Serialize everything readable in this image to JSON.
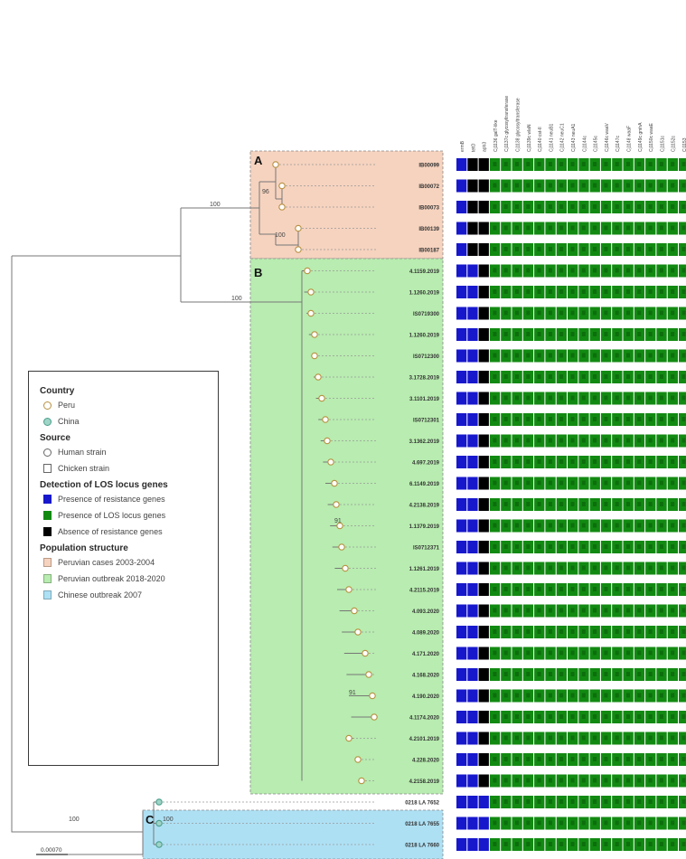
{
  "tree": {
    "groups": [
      {
        "letter": "A",
        "name": "Peruvian cases 2003-2004",
        "color": "#f6d3bf"
      },
      {
        "letter": "B",
        "name": "Peruvian outbreak 2018-2020",
        "color": "#b8ecb0"
      },
      {
        "letter": "C",
        "name": "Chinese outbreak 2007",
        "color": "#aee0f4"
      }
    ],
    "bootstrap_labels": [
      "100",
      "100",
      "100",
      "100",
      "100",
      "96",
      "91",
      "91"
    ],
    "scale_bar": "0.00070",
    "leaves": [
      "IB00099",
      "IB00072",
      "IB00073",
      "IB00139",
      "IB00187",
      "4.1159.2019",
      "1.1260.2019",
      "IS0719300",
      "1.1260.2019",
      "IS0712300",
      "3.1728.2019",
      "3.1101.2019",
      "IS0712301",
      "3.1362.2019",
      "4.697.2019",
      "6.1149.2019",
      "4.2138.2019",
      "1.1379.2019",
      "IS0712371",
      "1.1261.2019",
      "4.2115.2019",
      "4.093.2020",
      "4.089.2020",
      "4.171.2020",
      "4.168.2020",
      "4.190.2020",
      "4.1174.2020",
      "4.2101.2019",
      "4.228.2020",
      "4.2158.2019",
      "0218 LA 7652",
      "0218 LA 7655",
      "0218 LA 7660"
    ],
    "leaf_countries": [
      "Peru",
      "Peru",
      "Peru",
      "Peru",
      "Peru",
      "Peru",
      "Peru",
      "Peru",
      "Peru",
      "Peru",
      "Peru",
      "Peru",
      "Peru",
      "Peru",
      "Peru",
      "Peru",
      "Peru",
      "Peru",
      "Peru",
      "Peru",
      "Peru",
      "Peru",
      "Peru",
      "Peru",
      "Peru",
      "Peru",
      "Peru",
      "Peru",
      "Peru",
      "Peru",
      "China",
      "China",
      "China"
    ]
  },
  "matrix": {
    "columns": [
      "ermB",
      "tetO",
      "aph3",
      "Cj1136 galT-like",
      "Cj1137c glycosyltransferase",
      "Cj1138 glycosyltransferase",
      "Cj1139c wlaN",
      "Cj1140 cst-II",
      "Cj1141 neuB1",
      "Cj1142 neuC1",
      "Cj1143 neuA1",
      "Cj1144c",
      "Cj1145c",
      "Cj1146c waaV",
      "Cj1147c",
      "Cj1148 waaF",
      "Cj1149c gmhA",
      "Cj1150c waaE",
      "Cj1151c",
      "Cj1152c",
      "Cj1153",
      "Cj1154c"
    ],
    "status_colors": {
      "P": "#1717cc",
      "A": "#000000",
      "G": "#128a12"
    },
    "resistance_codes": [
      "PAA",
      "PAA",
      "PAA",
      "PAA",
      "PAA",
      "PPA",
      "PPA",
      "PPA",
      "PPA",
      "PPA",
      "PPA",
      "PPA",
      "PPA",
      "PPA",
      "PPA",
      "PPA",
      "PPA",
      "PPA",
      "PPA",
      "PPA",
      "PPA",
      "PPA",
      "PPA",
      "PPA",
      "PPA",
      "PPA",
      "PPA",
      "PPA",
      "PPA",
      "PPA",
      "PPP",
      "PPP",
      "PPP"
    ]
  },
  "legend": {
    "country_title": "Country",
    "country_peru": "Peru",
    "country_china": "China",
    "source_title": "Source",
    "source_human": "Human strain",
    "source_chicken": "Chicken strain",
    "detection_title": "Detection of LOS locus genes",
    "det_resistance": "Presence of resistance genes",
    "det_los": "Presence of LOS locus genes",
    "det_absence": "Absence of resistance genes",
    "pop_title": "Population structure",
    "pop_a": "Peruvian cases 2003-2004",
    "pop_b": "Peruvian outbreak 2018-2020",
    "pop_c": "Chinese outbreak 2007",
    "colors": {
      "peru": "#b89040",
      "china": "#4a9e8c",
      "pop_a": "#f6d3bf",
      "pop_b": "#b8ecb0",
      "pop_c": "#aee0f4"
    }
  }
}
